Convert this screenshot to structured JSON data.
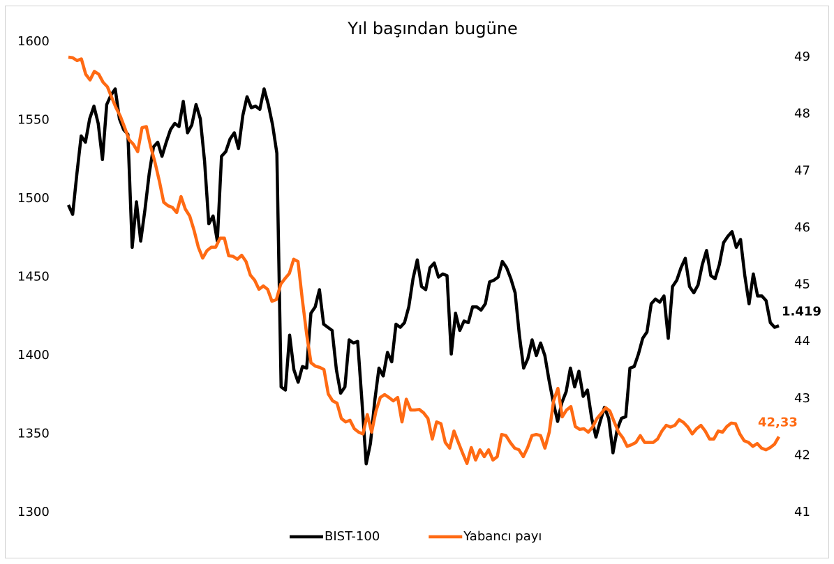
{
  "chart_data": {
    "type": "line",
    "title": "Yıl başından bugüne",
    "ylim": [
      1300,
      1600
    ],
    "yticks": [
      1300,
      1350,
      1400,
      1450,
      1500,
      1550,
      1600
    ],
    "y2lim": [
      41,
      49.27
    ],
    "y2ticks": [
      41,
      42,
      43,
      44,
      45,
      46,
      47,
      48,
      49
    ],
    "series": [
      {
        "name": "BIST-100",
        "color": "#000000",
        "last_label": "1.419",
        "values": [
          1496,
          1490,
          1516,
          1540,
          1536,
          1551,
          1559,
          1548,
          1525,
          1560,
          1566,
          1570,
          1551,
          1544,
          1541,
          1469,
          1498,
          1473,
          1493,
          1516,
          1533,
          1536,
          1527,
          1536,
          1544,
          1548,
          1546,
          1562,
          1542,
          1547,
          1560,
          1551,
          1524,
          1484,
          1489,
          1473,
          1527,
          1530,
          1538,
          1542,
          1532,
          1553,
          1565,
          1558,
          1559,
          1557,
          1570,
          1560,
          1547,
          1529,
          1380,
          1378,
          1413,
          1391,
          1383,
          1393,
          1392,
          1427,
          1431,
          1442,
          1420,
          1418,
          1416,
          1391,
          1376,
          1380,
          1410,
          1408,
          1409,
          1371,
          1331,
          1344,
          1371,
          1392,
          1387,
          1402,
          1396,
          1420,
          1418,
          1421,
          1431,
          1449,
          1461,
          1444,
          1442,
          1456,
          1459,
          1450,
          1452,
          1451,
          1401,
          1427,
          1416,
          1422,
          1421,
          1431,
          1431,
          1429,
          1433,
          1447,
          1448,
          1450,
          1460,
          1456,
          1449,
          1440,
          1413,
          1392,
          1398,
          1410,
          1400,
          1408,
          1400,
          1384,
          1370,
          1358,
          1370,
          1377,
          1392,
          1380,
          1390,
          1374,
          1378,
          1360,
          1348,
          1358,
          1367,
          1360,
          1338,
          1353,
          1360,
          1361,
          1392,
          1393,
          1401,
          1411,
          1415,
          1433,
          1436,
          1434,
          1438,
          1411,
          1444,
          1448,
          1456,
          1462,
          1444,
          1440,
          1445,
          1458,
          1467,
          1451,
          1449,
          1458,
          1472,
          1476,
          1479,
          1469,
          1474,
          1451,
          1433,
          1452,
          1438,
          1438,
          1435,
          1421,
          1418,
          1419
        ]
      },
      {
        "name": "Yabancı payı",
        "color": "#ff6a13",
        "axis": "y2",
        "last_label": "42,33",
        "values": [
          49.0,
          48.99,
          48.94,
          48.97,
          48.7,
          48.6,
          48.75,
          48.7,
          48.56,
          48.48,
          48.29,
          48.11,
          47.96,
          47.76,
          47.55,
          47.47,
          47.34,
          47.76,
          47.78,
          47.43,
          47.15,
          46.82,
          46.45,
          46.39,
          46.36,
          46.27,
          46.55,
          46.33,
          46.21,
          45.96,
          45.66,
          45.47,
          45.6,
          45.66,
          45.66,
          45.82,
          45.82,
          45.51,
          45.5,
          45.45,
          45.52,
          45.41,
          45.17,
          45.08,
          44.92,
          44.98,
          44.92,
          44.71,
          44.74,
          45.01,
          45.11,
          45.2,
          45.45,
          45.41,
          44.74,
          44.13,
          43.63,
          43.57,
          43.55,
          43.51,
          43.08,
          42.96,
          42.92,
          42.65,
          42.59,
          42.62,
          42.47,
          42.41,
          42.38,
          42.72,
          42.41,
          42.78,
          43.02,
          43.07,
          43.02,
          42.96,
          43.02,
          42.59,
          42.99,
          42.8,
          42.8,
          42.81,
          42.75,
          42.65,
          42.29,
          42.59,
          42.56,
          42.23,
          42.13,
          42.43,
          42.23,
          42.04,
          41.86,
          42.14,
          41.92,
          42.1,
          41.98,
          42.1,
          41.92,
          41.98,
          42.37,
          42.35,
          42.23,
          42.13,
          42.1,
          41.98,
          42.14,
          42.35,
          42.37,
          42.35,
          42.13,
          42.41,
          42.96,
          43.18,
          42.68,
          42.8,
          42.86,
          42.51,
          42.46,
          42.47,
          42.41,
          42.5,
          42.65,
          42.74,
          42.84,
          42.78,
          42.59,
          42.41,
          42.31,
          42.16,
          42.19,
          42.23,
          42.35,
          42.23,
          42.23,
          42.23,
          42.29,
          42.43,
          42.53,
          42.5,
          42.53,
          42.63,
          42.58,
          42.5,
          42.38,
          42.47,
          42.53,
          42.43,
          42.29,
          42.29,
          42.43,
          42.41,
          42.51,
          42.57,
          42.56,
          42.38,
          42.26,
          42.23,
          42.16,
          42.21,
          42.13,
          42.1,
          42.14,
          42.2,
          42.33
        ]
      }
    ]
  }
}
